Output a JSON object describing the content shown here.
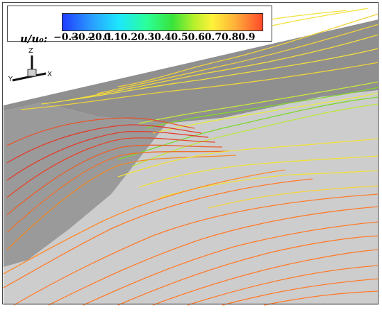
{
  "colorbar": {
    "variable_label": "u/u₀:",
    "ticks": [
      "−0.3",
      "−0.2",
      "−0.1",
      "0.1",
      "0.2",
      "0.3",
      "0.4",
      "0.5",
      "0.6",
      "0.7",
      "0.8",
      "0.9"
    ]
  },
  "axes": {
    "z": "Z",
    "y": "Y",
    "x": "X"
  },
  "colors": {
    "background": "#ffffff",
    "upper_surface": "#8f8f8f",
    "lower_surface": "#cdcdcd",
    "red": "#e23a2a",
    "orange": "#ff7a2a",
    "yellow": "#f2e13a",
    "green": "#6ad12b"
  }
}
